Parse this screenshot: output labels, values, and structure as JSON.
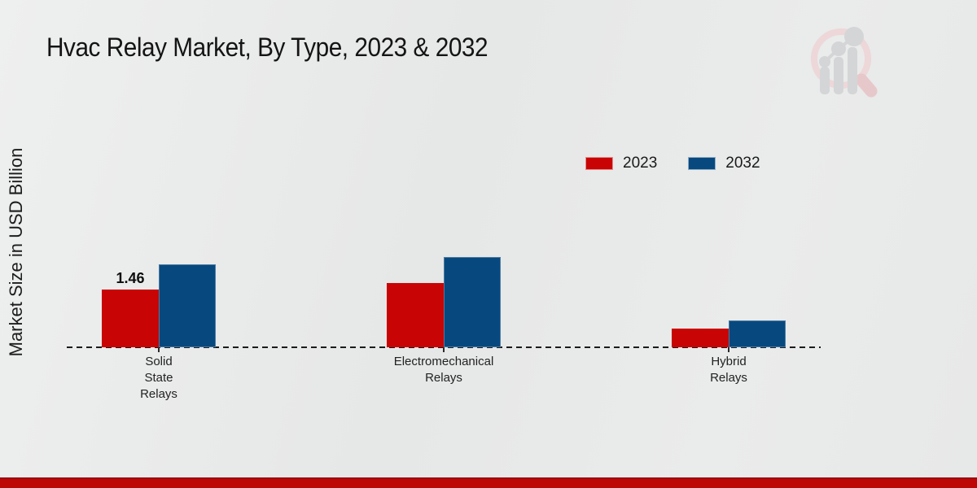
{
  "chart_data": {
    "type": "bar",
    "title": "Hvac Relay Market, By Type, 2023 & 2032",
    "ylabel": "Market Size in USD Billion",
    "categories": [
      "Solid State Relays",
      "Electromechanical Relays",
      "Hybrid Relays"
    ],
    "category_lines": [
      [
        "Solid",
        "State",
        "Relays"
      ],
      [
        "Electromechanical",
        "Relays"
      ],
      [
        "Hybrid",
        "Relays"
      ]
    ],
    "series": [
      {
        "name": "2023",
        "color": "#c90404",
        "values": [
          1.46,
          1.62,
          0.47
        ]
      },
      {
        "name": "2032",
        "color": "#07497f",
        "values": [
          2.1,
          2.28,
          0.68
        ]
      }
    ],
    "bar_labels": [
      {
        "series_index": 0,
        "category_index": 0,
        "text": "1.46"
      }
    ],
    "ylim": [
      0,
      2.5
    ],
    "grid": false,
    "legend_position": "top-right",
    "baseline_style": "dashed"
  },
  "colors": {
    "background": "#e8e9e9",
    "footer_band": "#bd0606",
    "footer_band_border": "#9c0d0d",
    "baseline": "#1b1b1b",
    "title_text": "#141414"
  }
}
